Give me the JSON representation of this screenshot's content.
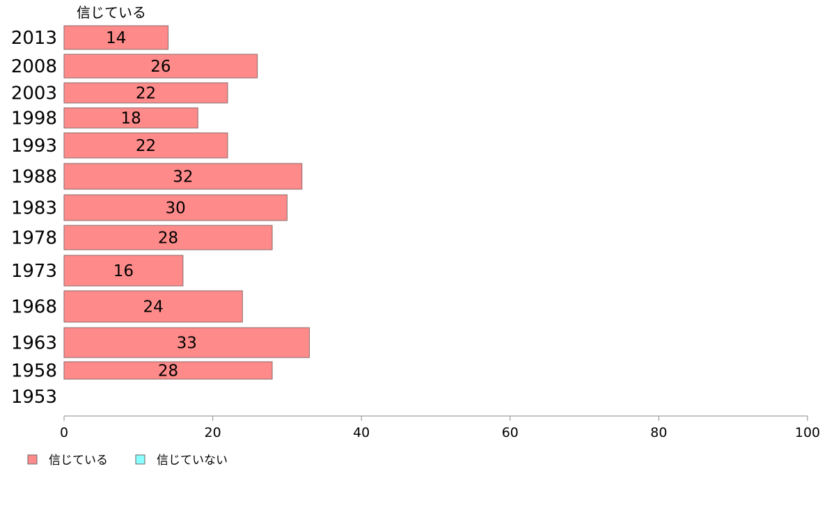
{
  "chart_data": {
    "type": "bar",
    "orientation": "horizontal",
    "series_header": "信じている",
    "categories": [
      "2013",
      "2008",
      "2003",
      "1998",
      "1993",
      "1988",
      "1983",
      "1978",
      "1973",
      "1968",
      "1963",
      "1958",
      "1953"
    ],
    "series": [
      {
        "name": "信じている",
        "color": "#ff8a8a",
        "values": [
          14,
          26,
          22,
          18,
          22,
          32,
          30,
          28,
          16,
          24,
          33,
          28,
          null
        ]
      },
      {
        "name": "信じていない",
        "color": "#8affff",
        "values": [
          null,
          null,
          null,
          null,
          null,
          null,
          null,
          null,
          null,
          null,
          null,
          null,
          null
        ]
      }
    ],
    "xlim": [
      0,
      100
    ],
    "xticks": [
      0,
      20,
      40,
      60,
      80,
      100
    ],
    "grid": false,
    "legend_position": "bottom-left"
  }
}
